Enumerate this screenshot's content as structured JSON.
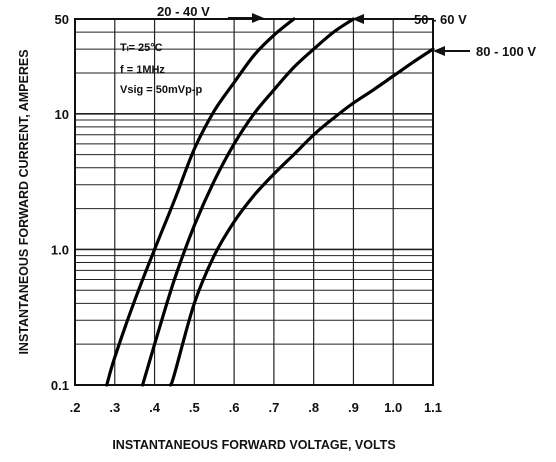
{
  "chart_data": {
    "type": "line",
    "title": "",
    "xlabel": "INSTANTANEOUS FORWARD VOLTAGE, VOLTS",
    "ylabel": "INSTANTANEOUS FORWARD CURRENT, AMPERES",
    "x_scale": "linear",
    "y_scale": "log",
    "xlim": [
      0.2,
      1.1
    ],
    "ylim": [
      0.1,
      50
    ],
    "x_ticks": [
      0.2,
      0.3,
      0.4,
      0.5,
      0.6,
      0.7,
      0.8,
      0.9,
      1.0,
      1.1
    ],
    "x_tick_labels": [
      ".2",
      ".3",
      ".4",
      ".5",
      ".6",
      ".7",
      ".8",
      ".9",
      "1.0",
      "1.1"
    ],
    "y_ticks": [
      0.1,
      1.0,
      10,
      50
    ],
    "y_tick_labels": [
      "0.1",
      "1.0",
      "10",
      "50"
    ],
    "grid": true,
    "conditions": [
      "Tₗ= 25°C",
      "f = 1MHz",
      "Vsig = 50mVp-p"
    ],
    "series": [
      {
        "name": "20 - 40 V",
        "x": [
          0.28,
          0.3,
          0.35,
          0.4,
          0.45,
          0.5,
          0.55,
          0.6,
          0.65,
          0.7,
          0.75
        ],
        "y": [
          0.1,
          0.16,
          0.42,
          1.0,
          2.3,
          5.5,
          10.5,
          17,
          27,
          38,
          50
        ]
      },
      {
        "name": "50 - 60 V",
        "x": [
          0.37,
          0.4,
          0.45,
          0.5,
          0.55,
          0.6,
          0.65,
          0.7,
          0.75,
          0.8,
          0.85,
          0.9
        ],
        "y": [
          0.1,
          0.2,
          0.6,
          1.5,
          3.2,
          6.0,
          10.0,
          15,
          22,
          30,
          40,
          50
        ]
      },
      {
        "name": "80 - 100 V",
        "x": [
          0.44,
          0.45,
          0.5,
          0.55,
          0.6,
          0.65,
          0.7,
          0.75,
          0.8,
          0.85,
          0.9,
          0.95,
          1.0,
          1.05,
          1.1
        ],
        "y": [
          0.1,
          0.12,
          0.4,
          0.9,
          1.6,
          2.5,
          3.6,
          5.0,
          7.0,
          9.3,
          12,
          15,
          19,
          24,
          30
        ]
      }
    ]
  }
}
